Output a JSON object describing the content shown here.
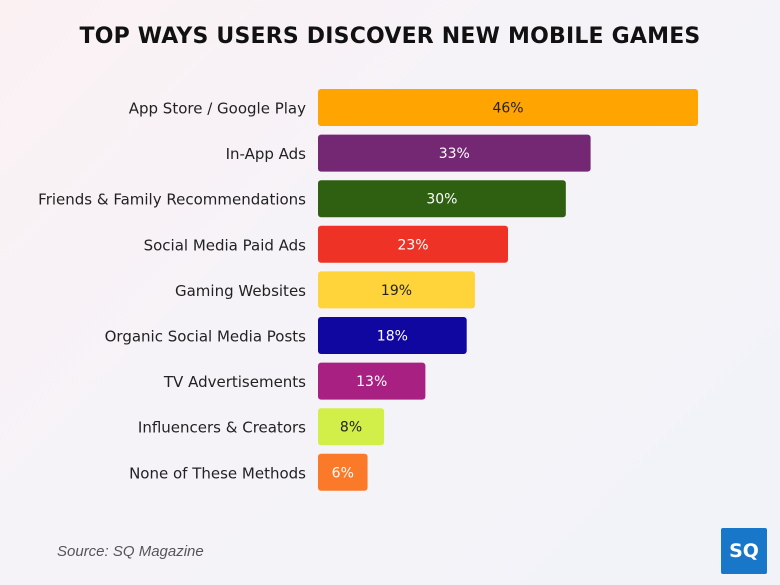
{
  "title": "TOP WAYS USERS DISCOVER NEW MOBILE GAMES",
  "source": "Source: SQ Magazine",
  "logo_text": "SQ",
  "chart_data": {
    "type": "bar",
    "orientation": "horizontal",
    "title": "TOP WAYS USERS DISCOVER NEW MOBILE GAMES",
    "categories": [
      "App Store / Google Play",
      "In-App Ads",
      "Friends & Family Recommendations",
      "Social Media Paid Ads",
      "Gaming Websites",
      "Organic Social Media Posts",
      "TV Advertisements",
      "Influencers & Creators",
      "None of These Methods"
    ],
    "values": [
      46,
      33,
      30,
      23,
      19,
      18,
      13,
      8,
      6
    ],
    "value_labels": [
      "46%",
      "33%",
      "30%",
      "23%",
      "19%",
      "18%",
      "13%",
      "8%",
      "6%"
    ],
    "colors": [
      "#ffa400",
      "#742873",
      "#2f5f10",
      "#ef3226",
      "#ffd43a",
      "#1007a0",
      "#a92083",
      "#d2ee48",
      "#fb7a2a"
    ],
    "label_colors": [
      "#222222",
      "#ffffff",
      "#ffffff",
      "#ffffff",
      "#222222",
      "#ffffff",
      "#ffffff",
      "#222222",
      "#ffffff"
    ],
    "xlim": [
      0,
      46
    ],
    "grid": false,
    "legend": "none"
  }
}
